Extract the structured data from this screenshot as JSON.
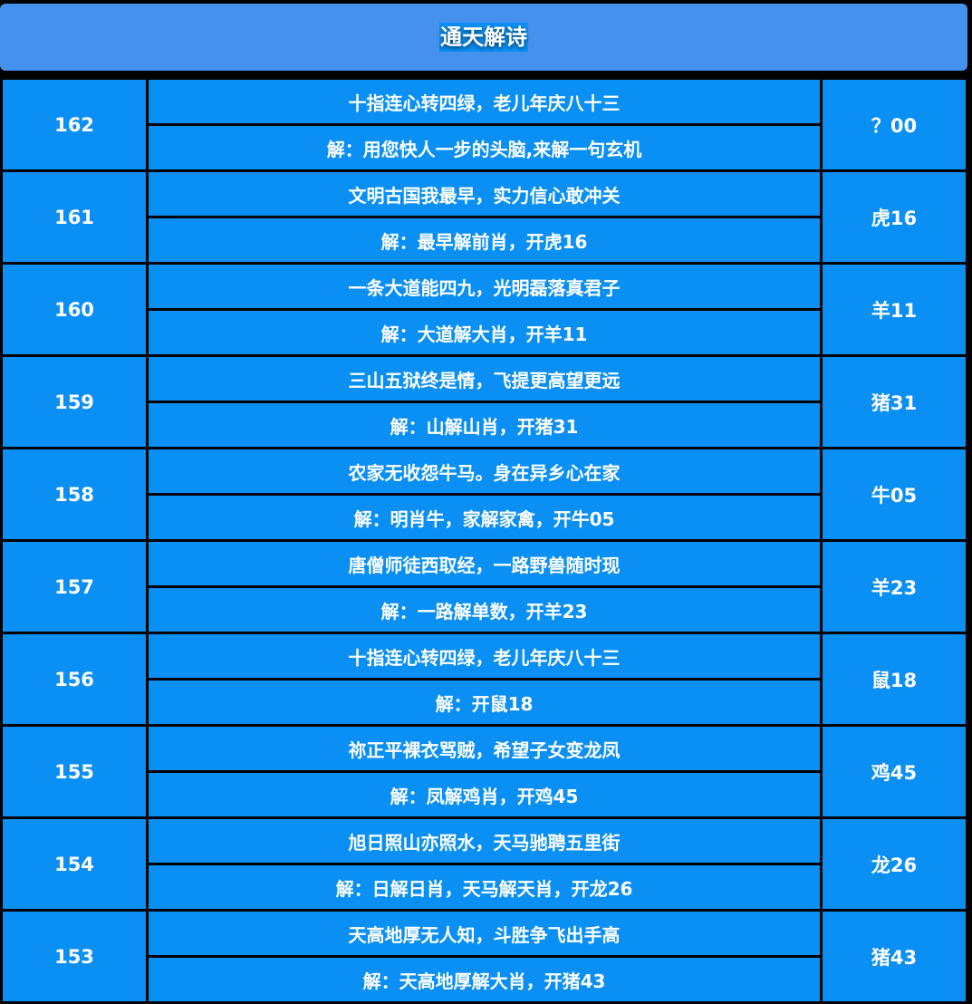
{
  "title": "通天解诗",
  "rows": [
    {
      "issue": "162",
      "poem": "十指连心转四绿，老儿年庆八十三",
      "solution": "解：用您快人一步的头脑,来解一句玄机",
      "result": "？00"
    },
    {
      "issue": "161",
      "poem": "文明古国我最早，实力信心敢冲关",
      "solution": "解：最早解前肖，开虎16",
      "result": "虎16"
    },
    {
      "issue": "160",
      "poem": "一条大道能四九，光明磊落真君子",
      "solution": "解：大道解大肖，开羊11",
      "result": "羊11"
    },
    {
      "issue": "159",
      "poem": "三山五狱终是情，飞提更高望更远",
      "solution": "解：山解山肖，开猪31",
      "result": "猪31"
    },
    {
      "issue": "158",
      "poem": "农家无收怨牛马。身在异乡心在家",
      "solution": "解：明肖牛，家解家禽，开牛05",
      "result": "牛05"
    },
    {
      "issue": "157",
      "poem": "唐僧师徒西取经，一路野兽随时现",
      "solution": "解：一路解单数，开羊23",
      "result": "羊23"
    },
    {
      "issue": "156",
      "poem": "十指连心转四绿，老儿年庆八十三",
      "solution": "解：开鼠18",
      "result": "鼠18"
    },
    {
      "issue": "155",
      "poem": "祢正平裸衣骂贼，希望子女变龙凤",
      "solution": "解：凤解鸡肖，开鸡45",
      "result": "鸡45"
    },
    {
      "issue": "154",
      "poem": "旭日照山亦照水，天马驰聘五里街",
      "solution": "解：日解日肖，天马解天肖，开龙26",
      "result": "龙26"
    },
    {
      "issue": "153",
      "poem": "天高地厚无人知，斗胜争飞出手高",
      "solution": "解：天高地厚解大肖，开猪43",
      "result": "猪43"
    }
  ]
}
